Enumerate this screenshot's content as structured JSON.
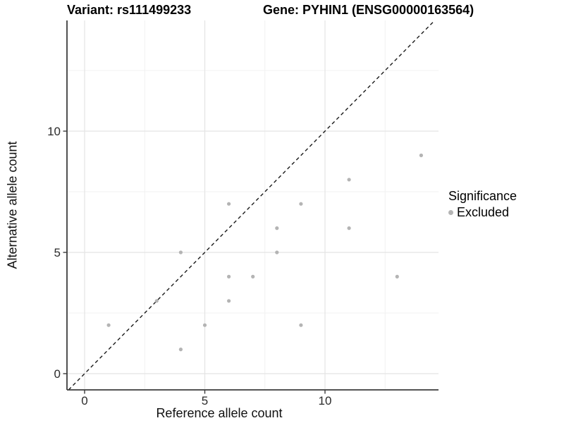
{
  "chart_data": {
    "type": "scatter",
    "titles": {
      "left": "Variant: rs111499233",
      "right": "Gene: PYHIN1 (ENSG00000163564)"
    },
    "xlabel": "Reference allele count",
    "ylabel": "Alternative allele count",
    "x_ticks": [
      0,
      5,
      10
    ],
    "y_ticks": [
      0,
      5,
      10
    ],
    "x_minor_gridlines": [
      2.5,
      7.5,
      12.5
    ],
    "y_minor_gridlines": [
      2.5,
      7.5,
      12.5
    ],
    "xlim": [
      -0.73,
      14.72
    ],
    "ylim": [
      -0.67,
      14.53
    ],
    "grid": true,
    "points": [
      [
        1,
        2
      ],
      [
        3,
        3
      ],
      [
        4,
        1
      ],
      [
        4,
        5
      ],
      [
        5,
        2
      ],
      [
        6,
        3
      ],
      [
        6,
        4
      ],
      [
        6,
        7
      ],
      [
        7,
        4
      ],
      [
        8,
        5
      ],
      [
        8,
        6
      ],
      [
        9,
        2
      ],
      [
        9,
        7
      ],
      [
        11,
        6
      ],
      [
        11,
        8
      ],
      [
        13,
        4
      ],
      [
        14,
        9
      ]
    ],
    "diagonal": {
      "slope": 1,
      "intercept": 0,
      "style": "dashed",
      "color": "#1a1a1a"
    },
    "point_color": "#b4b4b4",
    "grid_major_color": "#e4e4e4",
    "grid_minor_color": "#f1f1f1",
    "axis_line_color": "#3c3c3c",
    "tick_label_color": "#2b2b2b",
    "legend": {
      "title": "Significance",
      "position": "right",
      "entries": [
        {
          "label": "Excluded",
          "color": "#b4b4b4"
        }
      ]
    }
  }
}
